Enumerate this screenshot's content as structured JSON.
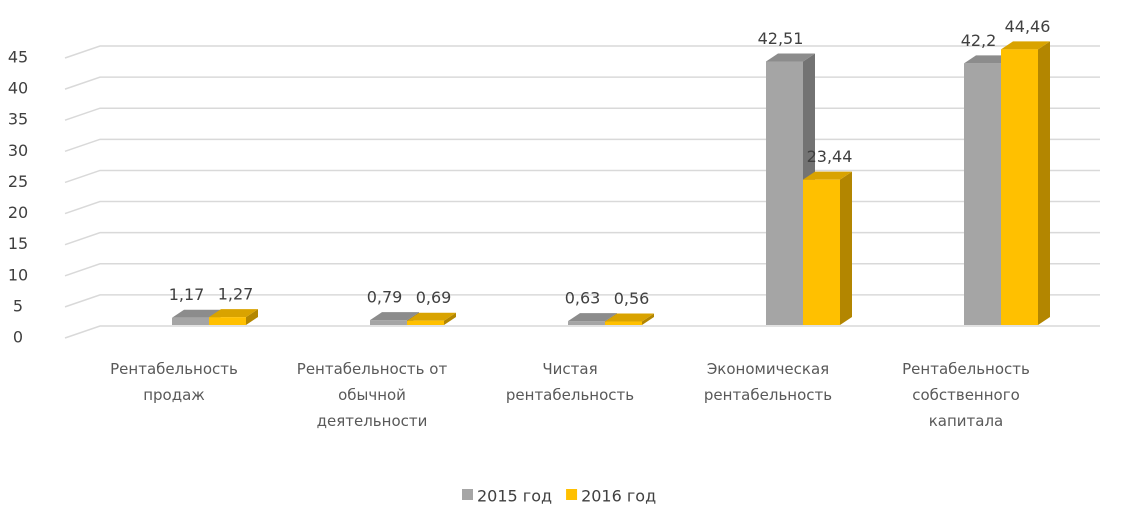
{
  "chart_data": {
    "type": "bar3d",
    "categories": [
      "Рентабельность продаж",
      "Рентабельность от обычной деятельности",
      "Чистая рентабельность",
      "Экономическая рентабельность",
      "Рентабельность собственного капитала"
    ],
    "series": [
      {
        "name": "2015 год",
        "color": "#a5a5a5",
        "values": [
          1.17,
          0.79,
          0.63,
          42.51,
          42.2
        ],
        "value_labels": [
          "1,17",
          "0,79",
          "0,63",
          "42,51",
          "42,2"
        ]
      },
      {
        "name": "2016 год",
        "color": "#ffc000",
        "values": [
          1.27,
          0.69,
          0.56,
          23.44,
          44.46
        ],
        "value_labels": [
          "1,27",
          "0,69",
          "0,56",
          "23,44",
          "44,46"
        ]
      }
    ],
    "ylim": [
      0,
      45
    ],
    "yticks": [
      0,
      5,
      10,
      15,
      20,
      25,
      30,
      35,
      40,
      45
    ],
    "grid": true,
    "legend": "bottom"
  }
}
